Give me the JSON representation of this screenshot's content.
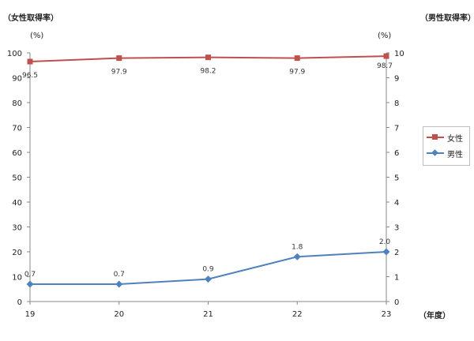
{
  "chart_data": {
    "type": "line",
    "left_axis_title": "（女性取得率）",
    "right_axis_title": "（男性取得率）",
    "left_unit": "(%)",
    "right_unit": "(%)",
    "x_axis_unit": "（年度）",
    "categories": [
      "19",
      "20",
      "21",
      "22",
      "23"
    ],
    "left_ylim": [
      0,
      100
    ],
    "left_ticks": [
      "0",
      "10",
      "20",
      "30",
      "40",
      "50",
      "60",
      "70",
      "80",
      "90",
      "100"
    ],
    "right_ylim": [
      0,
      10
    ],
    "right_ticks": [
      "0",
      "1",
      "2",
      "3",
      "4",
      "5",
      "6",
      "7",
      "8",
      "9",
      "10"
    ],
    "grid": false,
    "legend_position": "right",
    "series": [
      {
        "name": "女性",
        "axis": "left",
        "color": "#c0504d",
        "marker": "square",
        "values": [
          96.5,
          97.9,
          98.2,
          97.9,
          98.7
        ],
        "labels": [
          "96.5",
          "97.9",
          "98.2",
          "97.9",
          "98.7"
        ]
      },
      {
        "name": "男性",
        "axis": "right",
        "color": "#4f81bd",
        "marker": "diamond",
        "values": [
          0.7,
          0.7,
          0.9,
          1.8,
          2.0
        ],
        "labels": [
          "0.7",
          "0.7",
          "0.9",
          "1.8",
          "2.0"
        ]
      }
    ]
  }
}
